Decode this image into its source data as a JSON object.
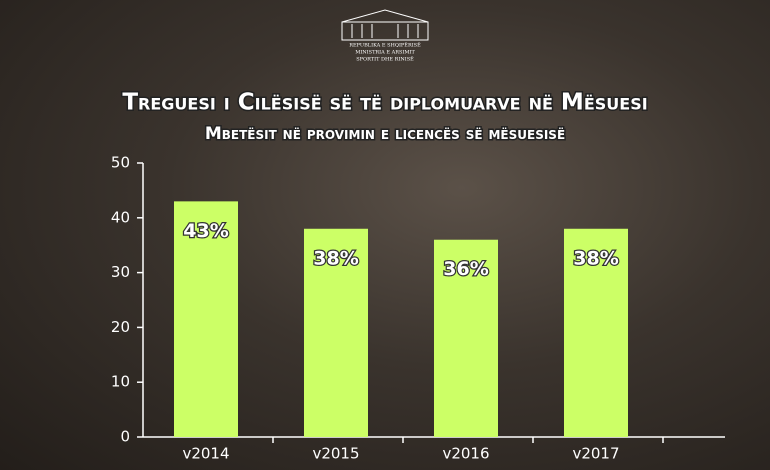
{
  "logo": {
    "lines": [
      "REPUBLIKA E SHQIPËRISË",
      "MINISTRIA E ARSIMIT",
      "SPORTIT DHE RINISË"
    ]
  },
  "chart_data": {
    "type": "bar",
    "title": "Treguesi i Cilësisë së të diplomuarve në Mësuesi",
    "subtitle": "Mbetësit në provimin e licencës së mësuesisë",
    "categories": [
      "v2014",
      "v2015",
      "v2016",
      "v2017"
    ],
    "values": [
      43,
      38,
      36,
      38
    ],
    "value_labels": [
      "43%",
      "38%",
      "36%",
      "38%"
    ],
    "color": "#ccff66",
    "ylim": [
      0,
      50
    ],
    "yticks": [
      0,
      10,
      20,
      30,
      40,
      50
    ]
  }
}
